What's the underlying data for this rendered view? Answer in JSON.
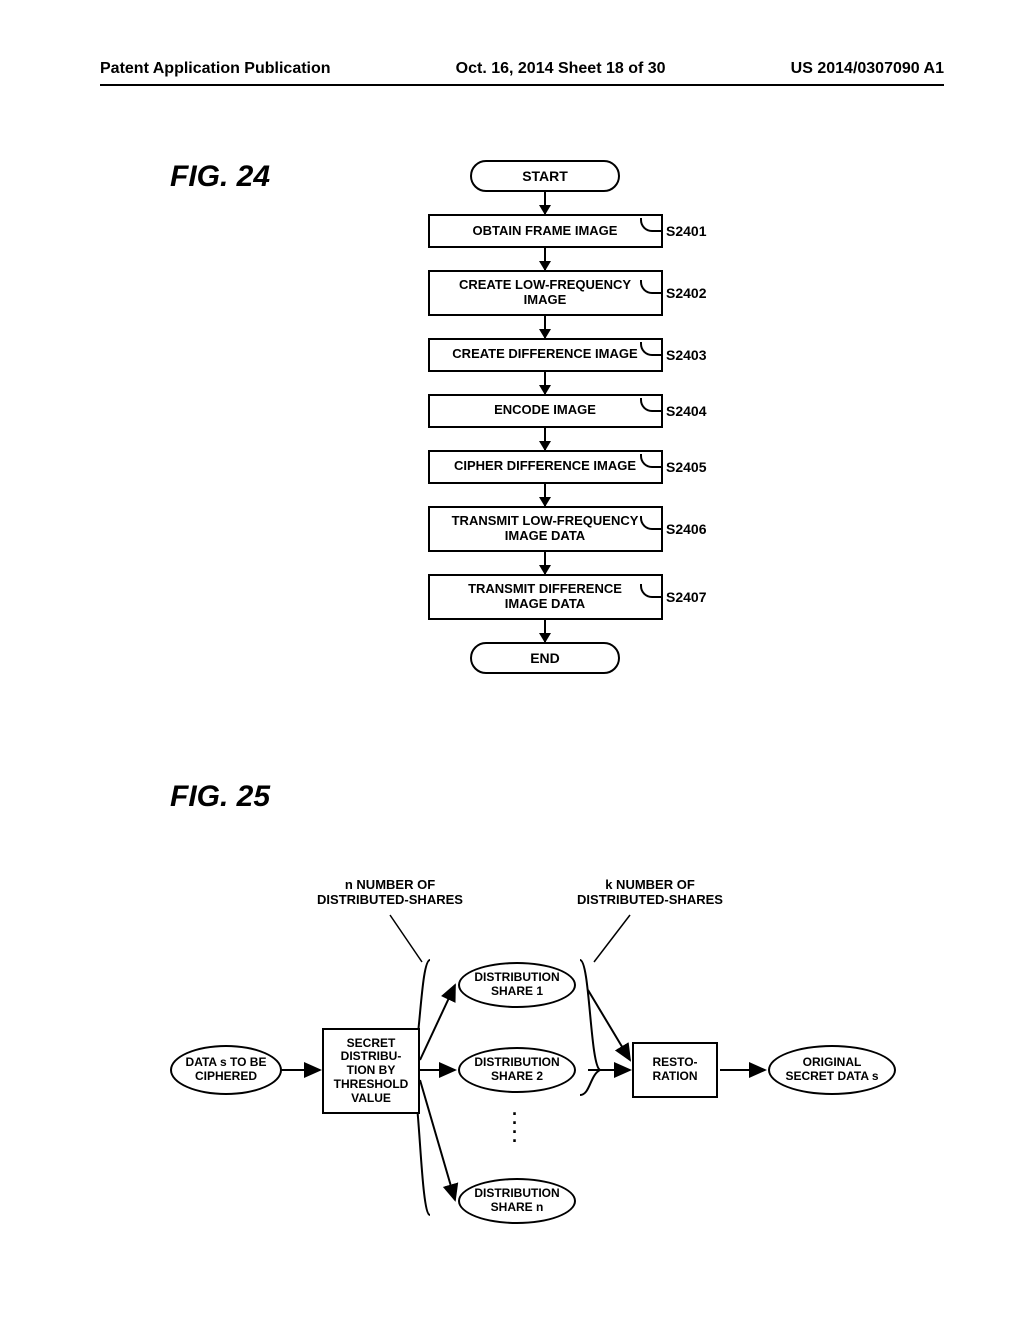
{
  "header": {
    "left": "Patent Application Publication",
    "center": "Oct. 16, 2014  Sheet 18 of 30",
    "right": "US 2014/0307090 A1"
  },
  "fig24": {
    "label": "FIG. 24",
    "start": "START",
    "end": "END",
    "steps": [
      {
        "text": "OBTAIN FRAME IMAGE",
        "tag": "S2401"
      },
      {
        "text": "CREATE LOW-FREQUENCY\nIMAGE",
        "tag": "S2402"
      },
      {
        "text": "CREATE DIFFERENCE IMAGE",
        "tag": "S2403"
      },
      {
        "text": "ENCODE IMAGE",
        "tag": "S2404"
      },
      {
        "text": "CIPHER DIFFERENCE IMAGE",
        "tag": "S2405"
      },
      {
        "text": "TRANSMIT LOW-FREQUENCY\nIMAGE DATA",
        "tag": "S2406"
      },
      {
        "text": "TRANSMIT DIFFERENCE\nIMAGE DATA",
        "tag": "S2407"
      }
    ]
  },
  "fig25": {
    "label": "FIG. 25",
    "caption_n": "n NUMBER OF\nDISTRIBUTED-SHARES",
    "caption_k": "k NUMBER OF\nDISTRIBUTED-SHARES",
    "data_in": "DATA s TO BE\nCIPHERED",
    "secret_box": "SECRET\nDISTRIBU-\nTION BY\nTHRESHOLD\nVALUE",
    "share1": "DISTRIBUTION\nSHARE 1",
    "share2": "DISTRIBUTION\nSHARE 2",
    "sharen": "DISTRIBUTION\nSHARE n",
    "resto_box": "RESTO-\nRATION",
    "data_out": "ORIGINAL\nSECRET DATA s",
    "colors": {
      "stroke": "#000000",
      "background": "#ffffff"
    }
  }
}
